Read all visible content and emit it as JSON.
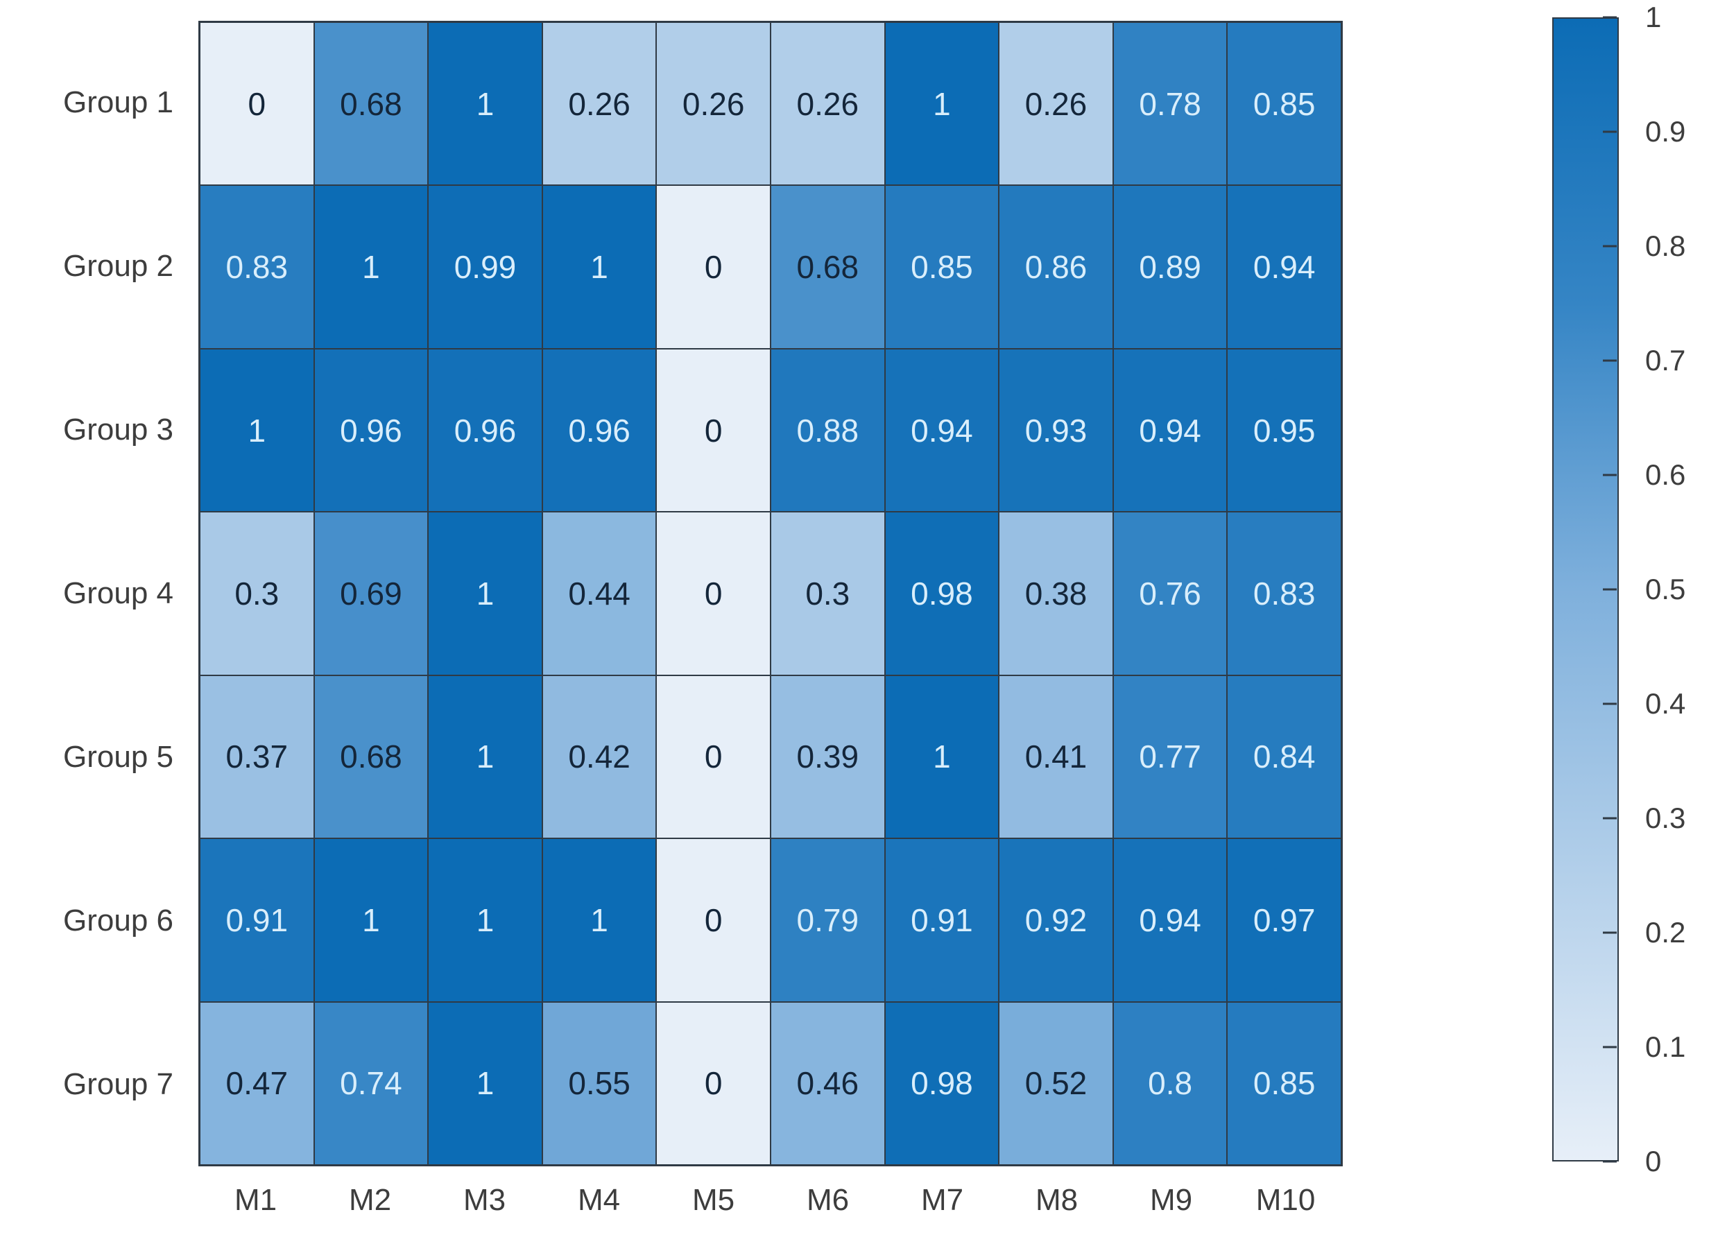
{
  "figure": {
    "background": "#ffffff",
    "axis_label_color": "#3d3d3d",
    "grid_line_color": "#2f3a45"
  },
  "chart_data": {
    "type": "heatmap",
    "title": "",
    "rows": [
      "Group 1",
      "Group 2",
      "Group 3",
      "Group 4",
      "Group 5",
      "Group 6",
      "Group 7"
    ],
    "columns": [
      "M1",
      "M2",
      "M3",
      "M4",
      "M5",
      "M6",
      "M7",
      "M8",
      "M9",
      "M10"
    ],
    "values": [
      [
        0,
        0.68,
        1,
        0.26,
        0.26,
        0.26,
        1,
        0.26,
        0.78,
        0.85
      ],
      [
        0.83,
        1,
        0.99,
        1,
        0,
        0.68,
        0.85,
        0.86,
        0.89,
        0.94
      ],
      [
        1,
        0.96,
        0.96,
        0.96,
        0,
        0.88,
        0.94,
        0.93,
        0.94,
        0.95
      ],
      [
        0.3,
        0.69,
        1,
        0.44,
        0,
        0.3,
        0.98,
        0.38,
        0.76,
        0.83
      ],
      [
        0.37,
        0.68,
        1,
        0.42,
        0,
        0.39,
        1,
        0.41,
        0.77,
        0.84
      ],
      [
        0.91,
        1,
        1,
        1,
        0,
        0.79,
        0.91,
        0.92,
        0.94,
        0.97
      ],
      [
        0.47,
        0.74,
        1,
        0.55,
        0,
        0.46,
        0.98,
        0.52,
        0.8,
        0.85
      ]
    ],
    "value_range": [
      0,
      1
    ],
    "colormap": {
      "name": "blues",
      "stops": [
        {
          "v": 0,
          "c": "#e7eff8"
        },
        {
          "v": 0.5,
          "c": "#7fb0dc"
        },
        {
          "v": 0.75,
          "c": "#3585c5"
        },
        {
          "v": 1,
          "c": "#0c6cb5"
        }
      ]
    },
    "cell_text_colors": {
      "dark": "#14263a",
      "light": "#d9eefb",
      "light_threshold": 0.7
    },
    "colorbar": {
      "position": "right",
      "min": 0,
      "max": 1,
      "tick_values": [
        1,
        0.9,
        0.8,
        0.7,
        0.6,
        0.5,
        0.4,
        0.3,
        0.2,
        0.1,
        0
      ],
      "tick_labels": [
        "1",
        "0.9",
        "0.8",
        "0.7",
        "0.6",
        "0.5",
        "0.4",
        "0.3",
        "0.2",
        "0.1",
        "0"
      ]
    }
  }
}
